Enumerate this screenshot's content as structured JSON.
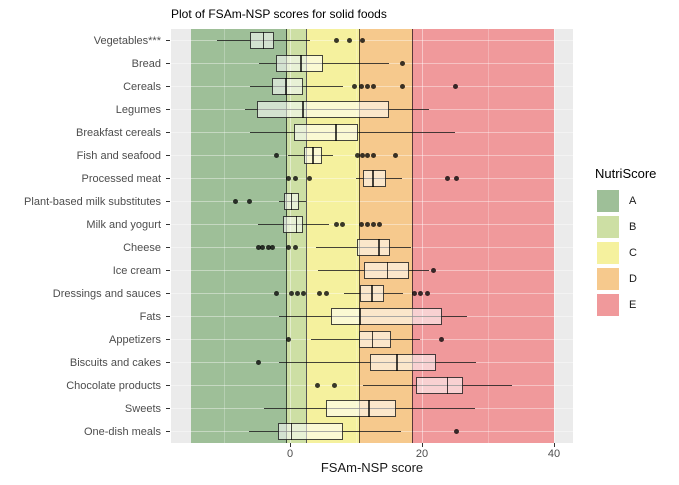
{
  "legend": {
    "title": "NutriScore",
    "entries": [
      {
        "label": "A",
        "color": "#9ebf98"
      },
      {
        "label": "B",
        "color": "#cddfa4"
      },
      {
        "label": "C",
        "color": "#f5f19e"
      },
      {
        "label": "D",
        "color": "#f6c98d"
      },
      {
        "label": "E",
        "color": "#f0999b"
      }
    ]
  },
  "colors": {
    "panel_background": "#ebebeb",
    "gridline": "#ffffff",
    "geometry_stroke": "#454545",
    "outlier": "#3a3a3a",
    "axis_text": "#4d4d4d",
    "title_text": "#000000"
  },
  "chart_data": {
    "type": "boxplot-horizontal",
    "title": "Plot of FSAm-NSP scores for solid foods",
    "xlabel": "FSAm-NSP score",
    "x_ticks": [
      0,
      20,
      40
    ],
    "x_range": [
      -18,
      43
    ],
    "grid": {
      "vertical_major": [
        0,
        20,
        40
      ],
      "vertical_minor": [
        -10,
        10,
        30
      ],
      "horizontal": "one per category"
    },
    "band_boundaries": [
      -0.5,
      2.5,
      10.5,
      18.5
    ],
    "bands": [
      {
        "grade": "A",
        "from": -15,
        "to": -0.5,
        "color": "#9ebf98"
      },
      {
        "grade": "B",
        "from": -0.5,
        "to": 2.5,
        "color": "#cddfa4"
      },
      {
        "grade": "C",
        "from": 2.5,
        "to": 10.5,
        "color": "#f5f19e"
      },
      {
        "grade": "D",
        "from": 10.5,
        "to": 18.5,
        "color": "#f6c98d"
      },
      {
        "grade": "E",
        "from": 18.5,
        "to": 40,
        "color": "#f0999b"
      }
    ],
    "categories": [
      "Vegetables***",
      "Bread",
      "Cereals",
      "Legumes",
      "Breakfast cereals",
      "Fish and seafood",
      "Processed meat",
      "Plant-based milk substitutes",
      "Milk and yogurt",
      "Cheese",
      "Ice cream",
      "Dressings and sauces",
      "Fats",
      "Appetizers",
      "Biscuits and cakes",
      "Chocolate products",
      "Sweets",
      "One-dish meals"
    ],
    "boxes": [
      {
        "category": "Vegetables***",
        "whisker_low": -11,
        "q1": -6,
        "median": -4,
        "q3": -2.4,
        "whisker_high": 3,
        "outliers": [
          7,
          9,
          11
        ]
      },
      {
        "category": "Bread",
        "whisker_low": -4.7,
        "q1": -2.1,
        "median": 1.7,
        "q3": 5,
        "whisker_high": 15,
        "outliers": [
          17
        ]
      },
      {
        "category": "Cereals",
        "whisker_low": -6,
        "q1": -2.7,
        "median": -0.6,
        "q3": 2,
        "whisker_high": 8,
        "outliers": [
          9.7,
          10.8,
          11.8,
          12.7,
          17,
          25
        ]
      },
      {
        "category": "Legumes",
        "whisker_low": -6.8,
        "q1": -5,
        "median": 2,
        "q3": 15,
        "whisker_high": 21,
        "outliers": []
      },
      {
        "category": "Breakfast cereals",
        "whisker_low": -6,
        "q1": 0.6,
        "median": 7,
        "q3": 10.3,
        "whisker_high": 25,
        "outliers": []
      },
      {
        "category": "Fish and seafood",
        "whisker_low": -0.3,
        "q1": 2.1,
        "median": 3.5,
        "q3": 4.8,
        "whisker_high": 6.5,
        "outliers": [
          -2.1,
          10.3,
          11,
          11.8,
          12.7,
          16
        ]
      },
      {
        "category": "Processed meat",
        "whisker_low": 10,
        "q1": 11,
        "median": 12.6,
        "q3": 14.5,
        "whisker_high": 17,
        "outliers": [
          -0.2,
          0.9,
          2.9,
          23.9,
          25.2
        ]
      },
      {
        "category": "Plant-based milk substitutes",
        "whisker_low": -1.7,
        "q1": -0.9,
        "median": 0.2,
        "q3": 1.4,
        "whisker_high": 2.4,
        "outliers": [
          -8.2,
          -6.1
        ]
      },
      {
        "category": "Milk and yogurt",
        "whisker_low": -4.8,
        "q1": -1.1,
        "median": 1,
        "q3": 2,
        "whisker_high": 5.9,
        "outliers": [
          7,
          7.9,
          10.9,
          11.8,
          12.6,
          13.5
        ]
      },
      {
        "category": "Cheese",
        "whisker_low": 3.9,
        "q1": 10.2,
        "median": 13.5,
        "q3": 15.2,
        "whisker_high": 18.3,
        "outliers": [
          -4.8,
          -4.1,
          -3.3,
          -2.6,
          -0.2,
          0.9
        ]
      },
      {
        "category": "Ice cream",
        "whisker_low": 4.2,
        "q1": 11.2,
        "median": 14.8,
        "q3": 18,
        "whisker_high": 21,
        "outliers": [
          21.8
        ]
      },
      {
        "category": "Dressings and sauces",
        "whisker_low": 8.2,
        "q1": 10.6,
        "median": 12.4,
        "q3": 14.2,
        "whisker_high": 17.1,
        "outliers": [
          -2.1,
          0.2,
          1.2,
          2.1,
          4.4,
          5.5,
          18.8,
          19.8,
          20.9
        ]
      },
      {
        "category": "Fats",
        "whisker_low": -1.7,
        "q1": 6.2,
        "median": 10.6,
        "q3": 23,
        "whisker_high": 26.8,
        "outliers": []
      },
      {
        "category": "Appetizers",
        "whisker_low": 3.2,
        "q1": 10.4,
        "median": 12.5,
        "q3": 15.3,
        "whisker_high": 19.7,
        "outliers": [
          -0.2,
          23
        ]
      },
      {
        "category": "Biscuits and cakes",
        "whisker_low": -1.7,
        "q1": 12.1,
        "median": 16.2,
        "q3": 22.1,
        "whisker_high": 28.2,
        "outliers": [
          -4.8
        ]
      },
      {
        "category": "Chocolate products",
        "whisker_low": 11.1,
        "q1": 19.1,
        "median": 23.9,
        "q3": 26.2,
        "whisker_high": 33.6,
        "outliers": [
          4.2,
          6.7
        ]
      },
      {
        "category": "Sweets",
        "whisker_low": -3.9,
        "q1": 5.5,
        "median": 12,
        "q3": 16.1,
        "whisker_high": 28,
        "outliers": []
      },
      {
        "category": "One-dish meals",
        "whisker_low": -6.2,
        "q1": -1.8,
        "median": 0.2,
        "q3": 8,
        "whisker_high": 16.8,
        "outliers": [
          25.3
        ]
      }
    ]
  }
}
